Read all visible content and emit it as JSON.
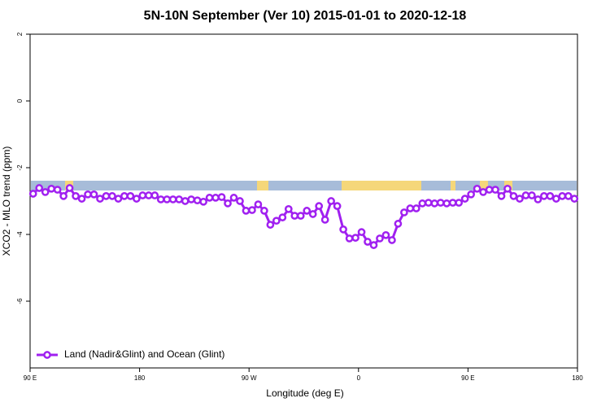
{
  "chart_data": {
    "type": "line",
    "title": "5N-10N September (Ver 10)   2015-01-01 to 2020-12-18",
    "x_label": "Longitude (deg E)",
    "y_label": "XCO2 - MLO trend (ppm)",
    "xlim": [
      90,
      540
    ],
    "ylim": [
      -8,
      2
    ],
    "xticks": [
      {
        "value": 90,
        "label": "90 E"
      },
      {
        "value": 180,
        "label": "180"
      },
      {
        "value": 270,
        "label": "90 W"
      },
      {
        "value": 360,
        "label": "0"
      },
      {
        "value": 450,
        "label": "90 E"
      },
      {
        "value": 540,
        "label": "180"
      }
    ],
    "yticks": [
      -6,
      -4,
      -2,
      0,
      2
    ],
    "legend": "bottom-left",
    "x": [
      92.5,
      97.5,
      102.5,
      107.5,
      112.5,
      117.5,
      122.5,
      127.5,
      132.5,
      137.5,
      142.5,
      147.5,
      152.5,
      157.5,
      162.5,
      167.5,
      172.5,
      177.5,
      182.5,
      187.5,
      192.5,
      197.5,
      202.5,
      207.5,
      212.5,
      217.5,
      222.5,
      227.5,
      232.5,
      237.5,
      242.5,
      247.5,
      252.5,
      257.5,
      262.5,
      267.5,
      272.5,
      277.5,
      282.5,
      287.5,
      292.5,
      297.5,
      302.5,
      307.5,
      312.5,
      317.5,
      322.5,
      327.5,
      332.5,
      337.5,
      342.5,
      347.5,
      352.5,
      357.5,
      362.5,
      367.5,
      372.5,
      377.5,
      382.5,
      387.5,
      392.5,
      397.5,
      402.5,
      407.5,
      412.5,
      417.5,
      422.5,
      427.5,
      432.5,
      437.5,
      442.5,
      447.5,
      452.5,
      457.5,
      462.5,
      467.5,
      472.5,
      477.5,
      482.5,
      487.5,
      492.5,
      497.5,
      502.5,
      507.5,
      512.5,
      517.5,
      522.5,
      527.5,
      532.5,
      537.5
    ],
    "series": [
      {
        "name": "Land (Nadir&Glint) and Ocean (Glint)",
        "color": "#a020f0",
        "values": [
          -2.78,
          -2.61,
          -2.73,
          -2.63,
          -2.66,
          -2.85,
          -2.61,
          -2.85,
          -2.93,
          -2.8,
          -2.8,
          -2.93,
          -2.85,
          -2.85,
          -2.93,
          -2.85,
          -2.85,
          -2.93,
          -2.83,
          -2.83,
          -2.83,
          -2.95,
          -2.95,
          -2.95,
          -2.95,
          -3.0,
          -2.95,
          -2.98,
          -3.02,
          -2.9,
          -2.9,
          -2.88,
          -3.07,
          -2.9,
          -3.0,
          -3.29,
          -3.27,
          -3.1,
          -3.29,
          -3.71,
          -3.59,
          -3.49,
          -3.24,
          -3.44,
          -3.44,
          -3.29,
          -3.39,
          -3.15,
          -3.56,
          -3.0,
          -3.15,
          -3.85,
          -4.12,
          -4.1,
          -3.93,
          -4.22,
          -4.32,
          -4.12,
          -4.02,
          -4.17,
          -3.68,
          -3.34,
          -3.22,
          -3.22,
          -3.07,
          -3.05,
          -3.07,
          -3.05,
          -3.07,
          -3.05,
          -3.05,
          -2.93,
          -2.8,
          -2.63,
          -2.73,
          -2.66,
          -2.66,
          -2.85,
          -2.63,
          -2.85,
          -2.93,
          -2.83,
          -2.83,
          -2.95,
          -2.85,
          -2.85,
          -2.93,
          -2.85,
          -2.85,
          -2.93
        ]
      }
    ]
  }
}
